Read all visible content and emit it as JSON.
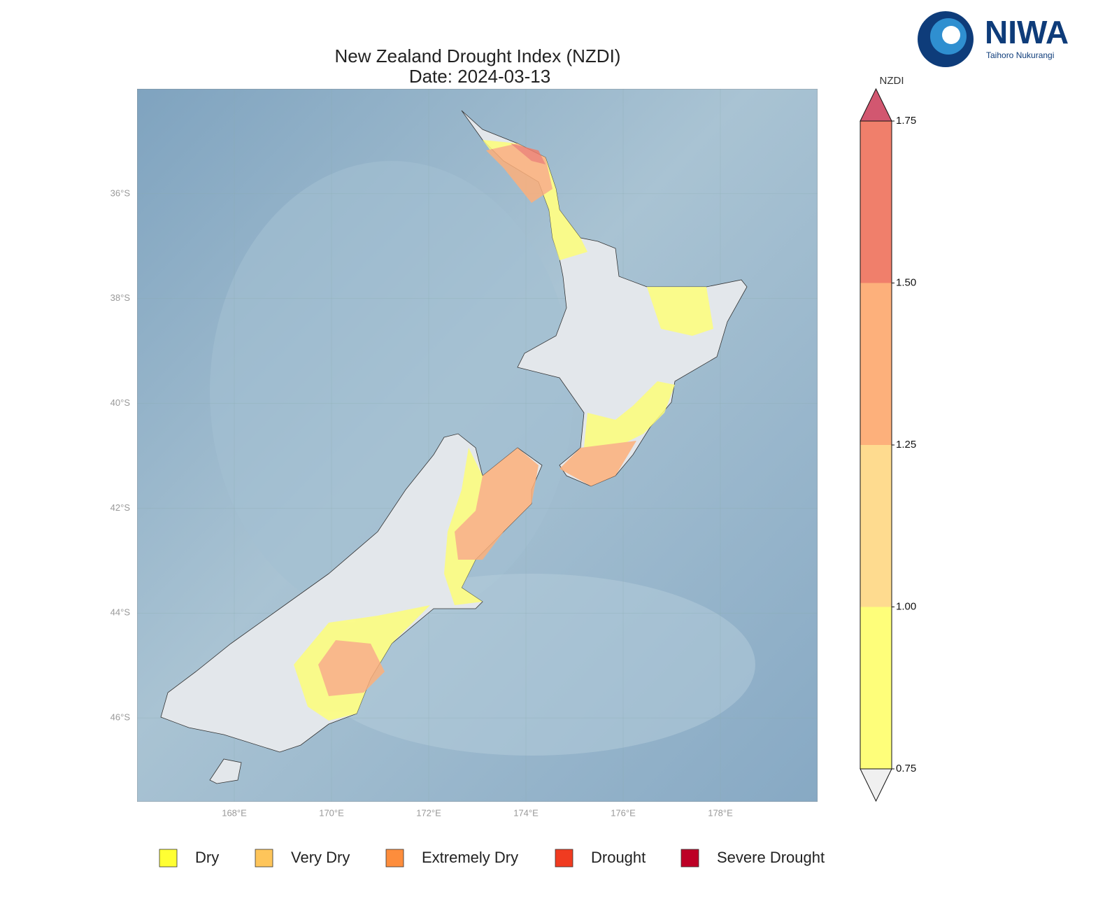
{
  "header": {
    "title": "New Zealand Drought Index (NZDI)",
    "subtitle": "Date: 2024-03-13"
  },
  "logo": {
    "name": "NIWA",
    "tagline": "Taihoro Nukurangi"
  },
  "map": {
    "xlim": [
      166,
      180
    ],
    "ylim": [
      -47.6,
      -34
    ],
    "xticks": [
      {
        "value": 168,
        "label": "168°E"
      },
      {
        "value": 170,
        "label": "170°E"
      },
      {
        "value": 172,
        "label": "172°E"
      },
      {
        "value": 174,
        "label": "174°E"
      },
      {
        "value": 176,
        "label": "176°E"
      },
      {
        "value": 178,
        "label": "178°E"
      }
    ],
    "yticks": [
      {
        "value": -36,
        "label": "36°S"
      },
      {
        "value": -38,
        "label": "38°S"
      },
      {
        "value": -40,
        "label": "40°S"
      },
      {
        "value": -42,
        "label": "42°S"
      },
      {
        "value": -44,
        "label": "44°S"
      },
      {
        "value": -46,
        "label": "46°S"
      }
    ],
    "grid": true
  },
  "colorbar": {
    "label": "NZDI",
    "ticks": [
      {
        "value": 0.75,
        "label": "0.75"
      },
      {
        "value": 1.0,
        "label": "1.00"
      },
      {
        "value": 1.25,
        "label": "1.25"
      },
      {
        "value": 1.5,
        "label": "1.50"
      },
      {
        "value": 1.75,
        "label": "1.75"
      }
    ],
    "colors": [
      "#fefe7a",
      "#fedb8f",
      "#fdb07b",
      "#f07f6b"
    ],
    "over_color": "#d25770",
    "under_color": "#f0f0f0"
  },
  "legend": [
    {
      "name": "Dry",
      "color": "#ffff33"
    },
    {
      "name": "Very Dry",
      "color": "#fec55a"
    },
    {
      "name": "Extremely Dry",
      "color": "#fd8d3c"
    },
    {
      "name": "Drought",
      "color": "#f03b20"
    },
    {
      "name": "Severe Drought",
      "color": "#bd0026"
    }
  ]
}
